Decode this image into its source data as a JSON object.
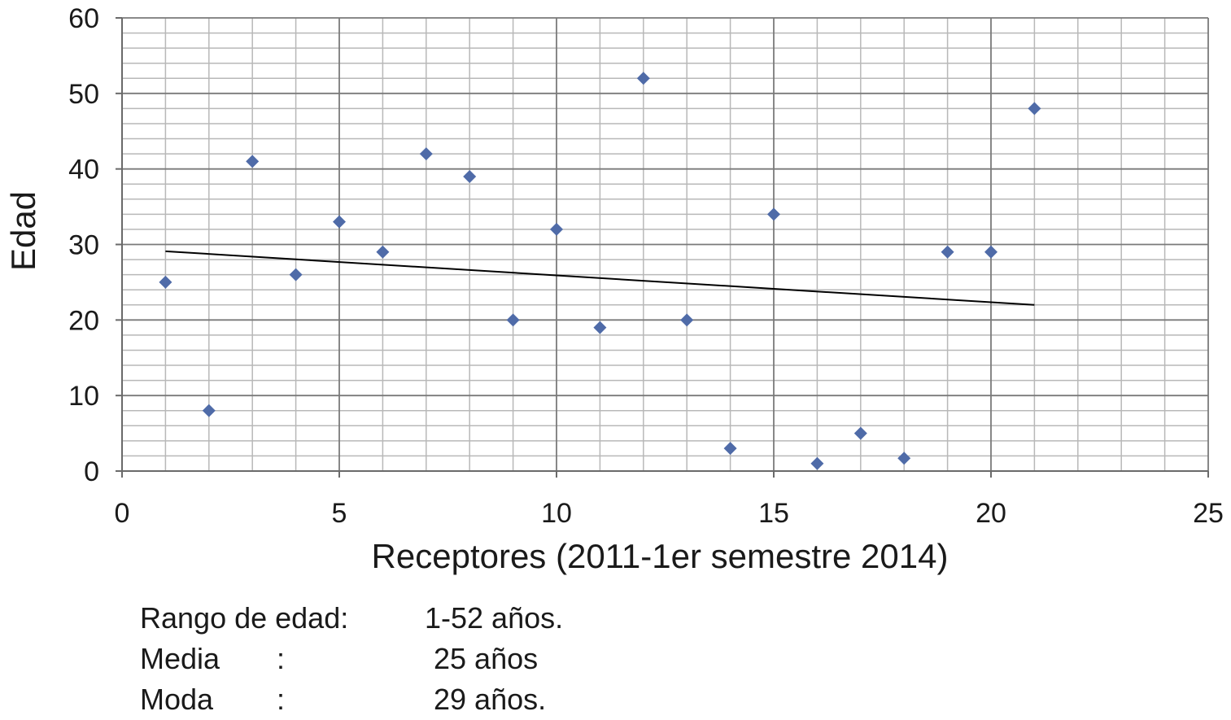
{
  "chart_data": {
    "type": "scatter",
    "title": "",
    "xlabel": "Receptores (2011-1er semestre 2014)",
    "ylabel": "Edad",
    "xlim": [
      0,
      25
    ],
    "ylim": [
      0,
      60
    ],
    "x_ticks": [
      0,
      5,
      10,
      15,
      20,
      25
    ],
    "y_ticks": [
      0,
      10,
      20,
      30,
      40,
      50,
      60
    ],
    "x_tick_labels": [
      "0",
      "5",
      "10",
      "15",
      "20",
      "25"
    ],
    "y_tick_labels": [
      "0",
      "10",
      "20",
      "30",
      "40",
      "50",
      "60"
    ],
    "grid": true,
    "legend": "none",
    "series": [
      {
        "x": [
          1,
          2,
          3,
          4,
          5,
          6,
          7,
          8,
          9,
          10,
          11,
          12,
          13,
          14,
          15,
          16,
          17,
          18,
          19,
          20,
          21
        ],
        "y": [
          25,
          8,
          41,
          26,
          33,
          29,
          42,
          39,
          20,
          32,
          19,
          52,
          20,
          3,
          34,
          1,
          5,
          1.7,
          29,
          29,
          48
        ],
        "marker": "diamond",
        "color": "#4f6ba8"
      }
    ],
    "trendline": {
      "type": "linear",
      "x": [
        1,
        21
      ],
      "y": [
        29.1,
        22.0
      ],
      "color": "#000000"
    }
  },
  "stats": {
    "range_label": "Rango de edad:",
    "range_value": "1-52  años.",
    "mean_label": "Media",
    "mean_colon": ":",
    "mean_value": "25 años",
    "mode_label": "Moda",
    "mode_colon": ":",
    "mode_value": "29 años."
  }
}
